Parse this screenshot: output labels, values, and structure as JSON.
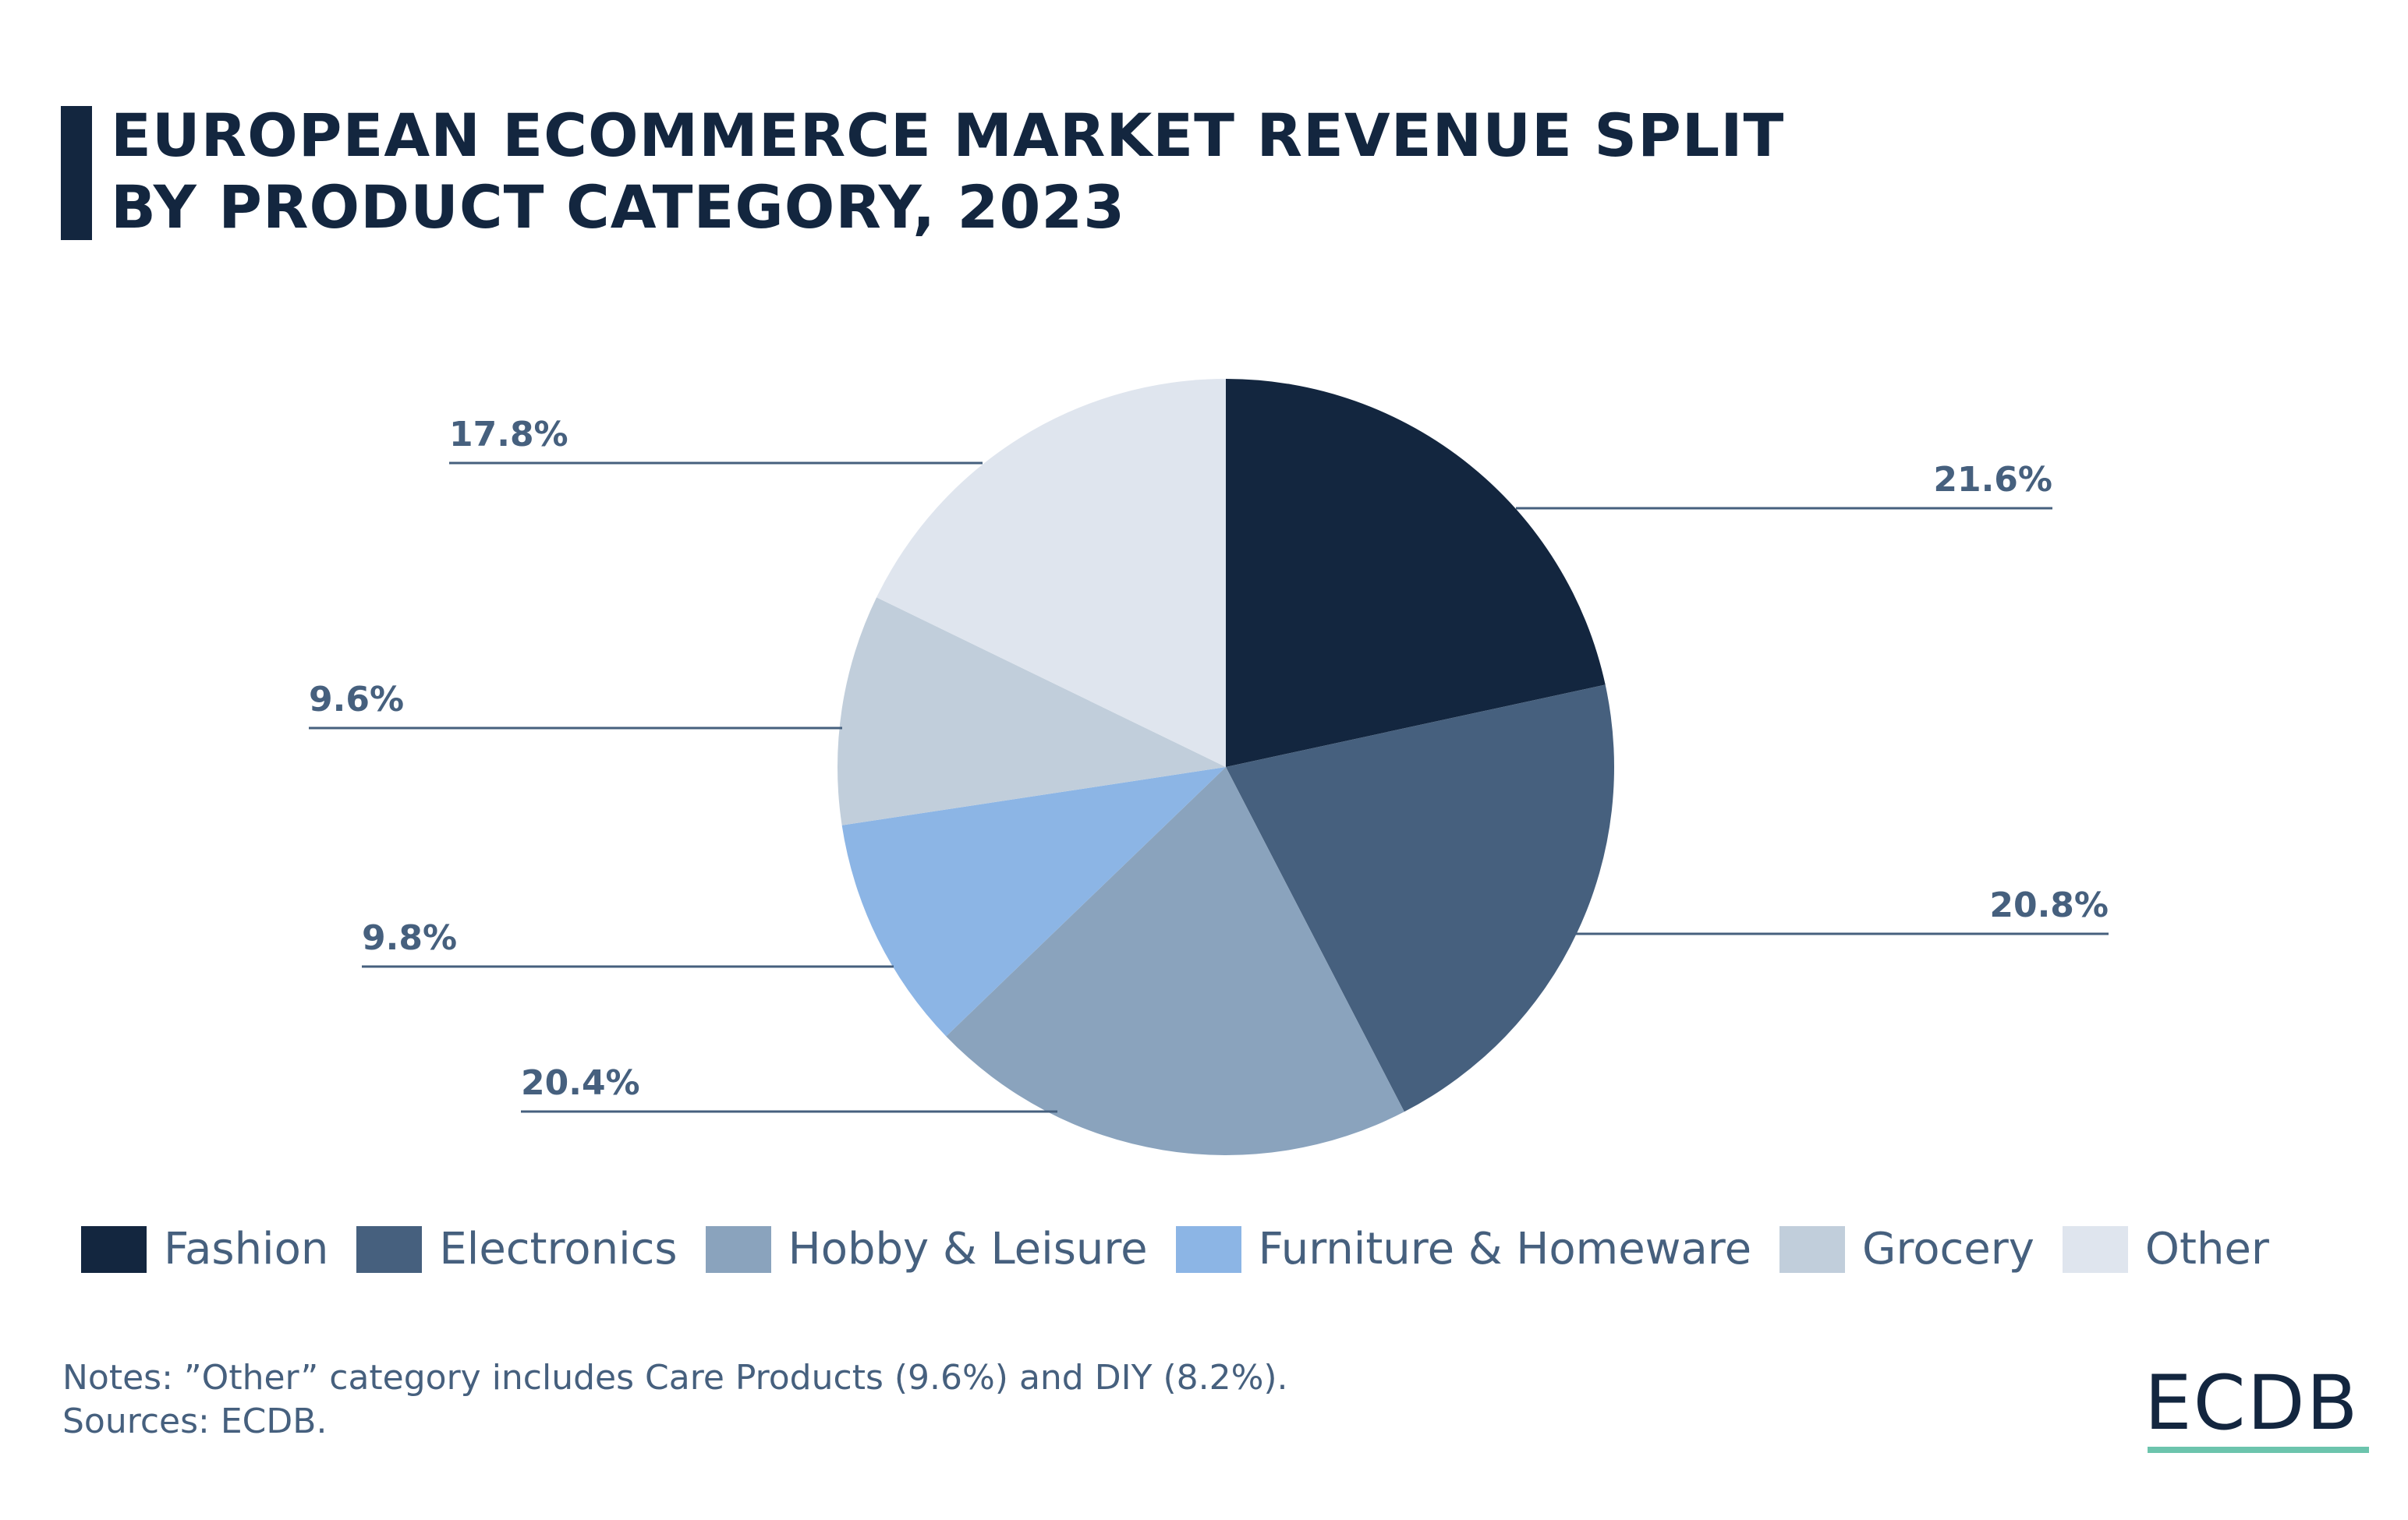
{
  "title_lines": [
    "EUROPEAN ECOMMERCE MARKET REVENUE SPLIT",
    "BY PRODUCT CATEGORY, 2023"
  ],
  "chart_data": {
    "type": "pie",
    "title": "EUROPEAN ECOMMERCE MARKET REVENUE SPLIT BY PRODUCT CATEGORY, 2023",
    "unit": "%",
    "start_angle": "12 o'clock, clockwise",
    "legend_position": "bottom",
    "categories": [
      "Fashion",
      "Electronics",
      "Hobby & Leisure",
      "Furniture & Homeware",
      "Grocery",
      "Other"
    ],
    "values": [
      21.6,
      20.8,
      20.4,
      9.8,
      9.6,
      17.8
    ],
    "data_labels": [
      "21.6%",
      "20.8%",
      "20.4%",
      "9.8%",
      "9.6%",
      "17.8%"
    ],
    "colors": [
      "#13263f",
      "#46607e",
      "#8aa3bd",
      "#8cb5e5",
      "#c1cedb",
      "#dfe5ee"
    ]
  },
  "notes": "Notes: ”Other” category includes Care Products (9.6%) and DIY (8.2%).",
  "sources": "Sources: ECDB.",
  "logo": "ECDB",
  "colors": {
    "title": "#13263f",
    "label": "#46607e",
    "logo_accent": "#6cc4ad"
  }
}
